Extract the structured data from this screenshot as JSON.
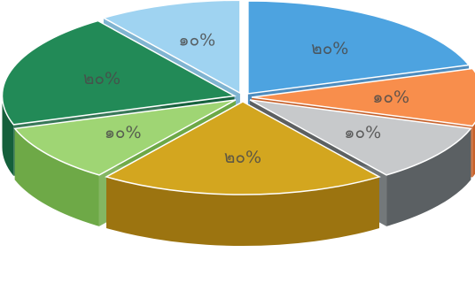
{
  "chart_data": {
    "type": "pie",
    "style": "3d-exploded",
    "slices": [
      {
        "value": 20,
        "label": "๒๐%",
        "color": "#4da3e0",
        "side": "#2f78b3"
      },
      {
        "value": 10,
        "label": "๑๐%",
        "color": "#f88e4c",
        "side": "#c8622a"
      },
      {
        "value": 10,
        "label": "๑๐%",
        "color": "#c7c9cb",
        "side": "#5b6063"
      },
      {
        "value": 20,
        "label": "๒๐%",
        "color": "#d3a61f",
        "side": "#9c7410"
      },
      {
        "value": 10,
        "label": "๑๐%",
        "color": "#9fd574",
        "side": "#6ea947"
      },
      {
        "value": 20,
        "label": "๒๐%",
        "color": "#228a57",
        "side": "#15603b"
      },
      {
        "value": 10,
        "label": "๑๐%",
        "color": "#9fd3f1",
        "side": "#6aa7c9"
      }
    ],
    "start_angle_deg": 90,
    "direction": "clockwise",
    "legend": "none",
    "title": ""
  }
}
